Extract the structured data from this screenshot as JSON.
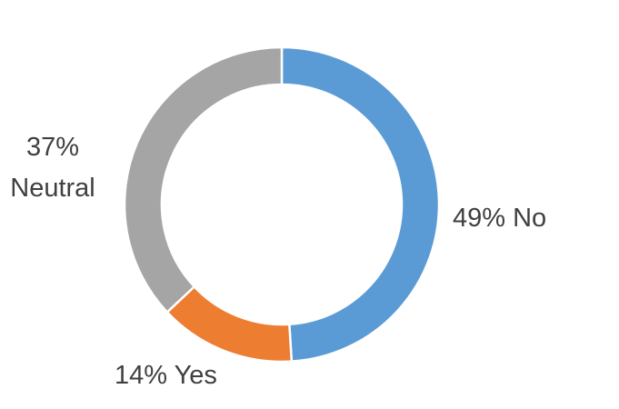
{
  "chart_data": {
    "type": "donut",
    "categories": [
      "No",
      "Yes",
      "Neutral"
    ],
    "values": [
      49,
      14,
      37
    ],
    "value_labels": [
      "49%",
      "14%",
      "37%"
    ],
    "colors": [
      "#5b9bd5",
      "#ed7d31",
      "#a5a5a5"
    ]
  }
}
